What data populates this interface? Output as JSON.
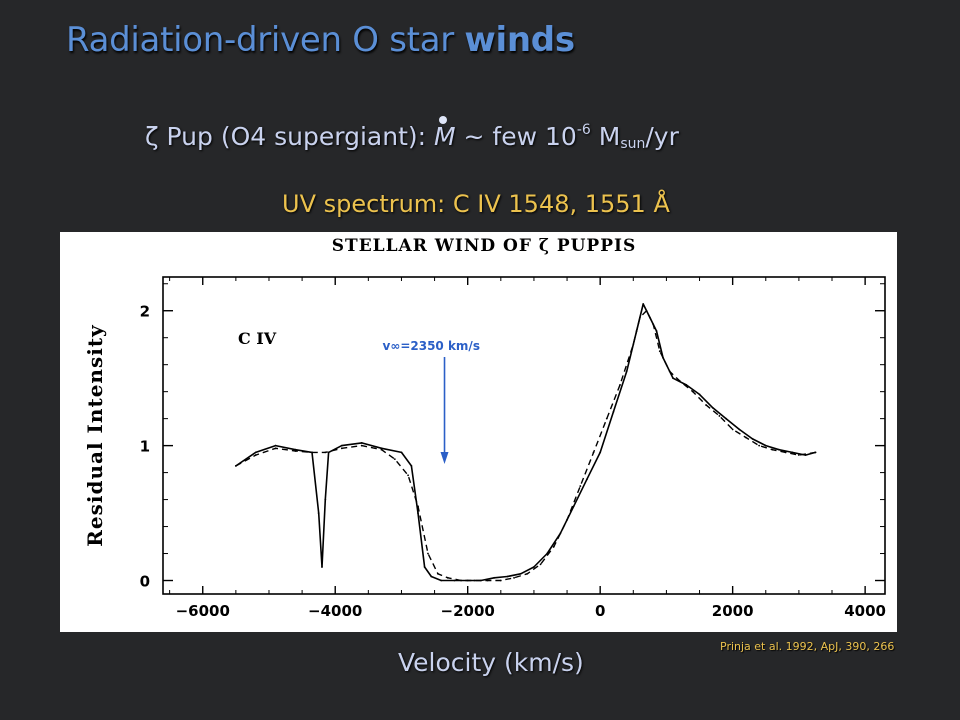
{
  "slide": {
    "title_main": "Radiation-driven O star ",
    "title_bold": "winds",
    "subtitle_prefix": "ζ Pup (O4 supergiant): ",
    "subtitle_m": "M",
    "subtitle_mid": " ~ few 10",
    "subtitle_exp": "-6",
    "subtitle_unit": " M",
    "subtitle_sub": "sun",
    "subtitle_tail": "/yr",
    "uv_line": "UV spectrum: C IV 1548, 1551 Å",
    "xlabel_below": "Velocity  (km/s)",
    "reference": "Prinja et al. 1992, ApJ, 390, 266"
  },
  "colors": {
    "background": "#262729",
    "title": "#5b8fd6",
    "subtitle": "#c9d2ee",
    "highlight": "#ecc24e",
    "annotation": "#2b5fc7"
  },
  "chart_data": {
    "type": "line",
    "title": "STELLAR WIND OF ζ PUPPIS",
    "ylabel": "Residual  Intensity",
    "xlim": [
      -6600,
      4300
    ],
    "ylim": [
      -0.1,
      2.25
    ],
    "xticks": [
      -6000,
      -4000,
      -2000,
      0,
      2000,
      4000
    ],
    "xtick_labels": [
      "−6000",
      "−4000",
      "−2000",
      "0",
      "2000",
      "4000"
    ],
    "yticks": [
      0,
      1,
      2
    ],
    "ytick_labels": [
      "0",
      "1",
      "2"
    ],
    "ion_label": "C  IV",
    "annotation": {
      "text": "v∞=2350 km/s",
      "x": -2350
    },
    "series": [
      {
        "style": "solid",
        "x": [
          -5500,
          -5200,
          -4900,
          -4600,
          -4350,
          -4250,
          -4200,
          -4150,
          -4100,
          -3900,
          -3600,
          -3300,
          -3000,
          -2850,
          -2750,
          -2650,
          -2550,
          -2400,
          -2200,
          -2000,
          -1800,
          -1600,
          -1400,
          -1200,
          -1000,
          -800,
          -600,
          -400,
          -200,
          0,
          200,
          400,
          550,
          650,
          750,
          850,
          950,
          1100,
          1300,
          1500,
          1700,
          1900,
          2100,
          2300,
          2500,
          2700,
          2900,
          3100,
          3250
        ],
        "y": [
          0.85,
          0.95,
          1.0,
          0.97,
          0.95,
          0.5,
          0.1,
          0.6,
          0.95,
          1.0,
          1.02,
          0.98,
          0.95,
          0.85,
          0.5,
          0.1,
          0.03,
          0.0,
          0.0,
          0.0,
          0.0,
          0.02,
          0.03,
          0.05,
          0.1,
          0.2,
          0.35,
          0.55,
          0.75,
          0.95,
          1.25,
          1.55,
          1.85,
          2.05,
          1.95,
          1.85,
          1.65,
          1.5,
          1.45,
          1.38,
          1.28,
          1.2,
          1.12,
          1.05,
          1.0,
          0.97,
          0.95,
          0.93,
          0.95
        ]
      },
      {
        "style": "dashed",
        "x": [
          -5500,
          -5200,
          -4900,
          -4600,
          -4350,
          -4150,
          -3900,
          -3600,
          -3300,
          -3100,
          -2900,
          -2750,
          -2600,
          -2450,
          -2300,
          -2100,
          -1900,
          -1700,
          -1500,
          -1300,
          -1100,
          -900,
          -700,
          -500,
          -300,
          -100,
          100,
          300,
          500,
          600,
          700,
          800,
          900,
          1050,
          1200,
          1400,
          1600,
          1800,
          2000,
          2200,
          2400,
          2600,
          2800,
          3000,
          3250
        ],
        "y": [
          0.85,
          0.93,
          0.98,
          0.96,
          0.95,
          0.95,
          0.98,
          1.0,
          0.97,
          0.9,
          0.78,
          0.55,
          0.2,
          0.05,
          0.02,
          0.0,
          0.0,
          0.0,
          0.0,
          0.02,
          0.05,
          0.12,
          0.25,
          0.45,
          0.7,
          0.95,
          1.2,
          1.45,
          1.75,
          1.95,
          2.0,
          1.9,
          1.7,
          1.55,
          1.48,
          1.4,
          1.3,
          1.22,
          1.12,
          1.06,
          1.0,
          0.97,
          0.95,
          0.93,
          0.95
        ]
      }
    ]
  }
}
